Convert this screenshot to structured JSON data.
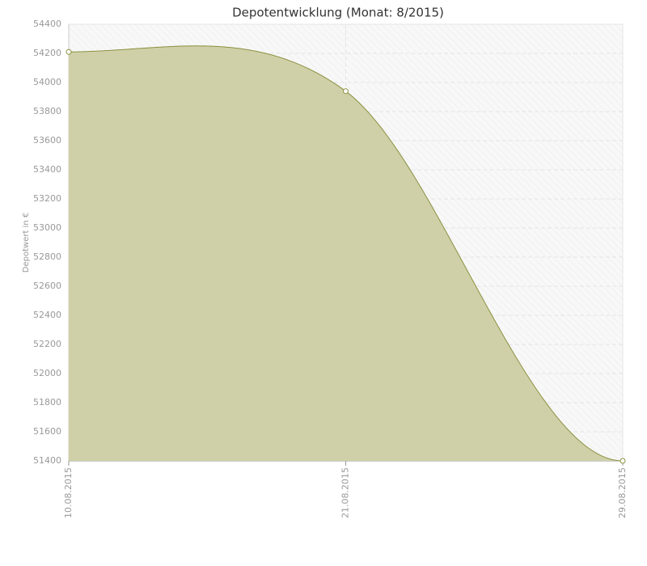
{
  "chart_data": {
    "type": "area",
    "title": "Depotentwicklung (Monat: 8/2015)",
    "y_label": "Depotwert in €",
    "categories": [
      "10.08.2015",
      "21.08.2015",
      "29.08.2015"
    ],
    "values": [
      54210,
      53940,
      51400
    ],
    "color": "#cfd0a8",
    "line_color": "#8c9140",
    "ylim": [
      51400,
      54400
    ],
    "yticks": [
      51400,
      51600,
      51800,
      52000,
      52200,
      52400,
      52600,
      52800,
      53000,
      53200,
      53400,
      53600,
      53800,
      54000,
      54200,
      54400
    ],
    "grid": true
  }
}
